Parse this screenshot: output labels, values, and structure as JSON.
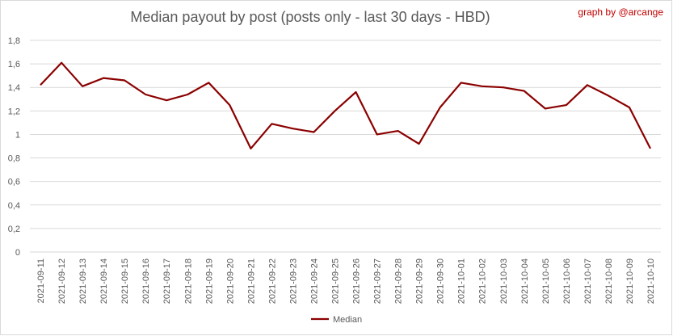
{
  "chart_data": {
    "type": "line",
    "title": "Median payout by post (posts only - last 30 days - HBD)",
    "credit": "graph by @arcange",
    "xlabel": "",
    "ylabel": "",
    "ylim": [
      0,
      1.8
    ],
    "yticks": [
      "0",
      "0,2",
      "0,4",
      "0,6",
      "0,8",
      "1",
      "1,2",
      "1,4",
      "1,6",
      "1,8"
    ],
    "grid": true,
    "legend_position": "bottom",
    "categories": [
      "2021-09-11",
      "2021-09-12",
      "2021-09-13",
      "2021-09-14",
      "2021-09-15",
      "2021-09-16",
      "2021-09-17",
      "2021-09-18",
      "2021-09-19",
      "2021-09-20",
      "2021-09-21",
      "2021-09-22",
      "2021-09-23",
      "2021-09-24",
      "2021-09-25",
      "2021-09-26",
      "2021-09-27",
      "2021-09-28",
      "2021-09-29",
      "2021-09-30",
      "2021-10-01",
      "2021-10-02",
      "2021-10-03",
      "2021-10-04",
      "2021-10-05",
      "2021-10-06",
      "2021-10-07",
      "2021-10-08",
      "2021-10-09",
      "2021-10-10"
    ],
    "series": [
      {
        "name": "Median",
        "color": "#8b0000",
        "values": [
          1.42,
          1.61,
          1.41,
          1.48,
          1.46,
          1.34,
          1.29,
          1.34,
          1.44,
          1.25,
          0.88,
          1.09,
          1.05,
          1.02,
          1.2,
          1.36,
          1.0,
          1.03,
          0.92,
          1.23,
          1.44,
          1.41,
          1.4,
          1.37,
          1.22,
          1.25,
          1.42,
          1.33,
          1.23,
          0.88
        ]
      }
    ]
  },
  "colors": {
    "line": "#8b0000",
    "grid": "#d9d9d9",
    "text": "#595959",
    "credit": "#c00000"
  }
}
